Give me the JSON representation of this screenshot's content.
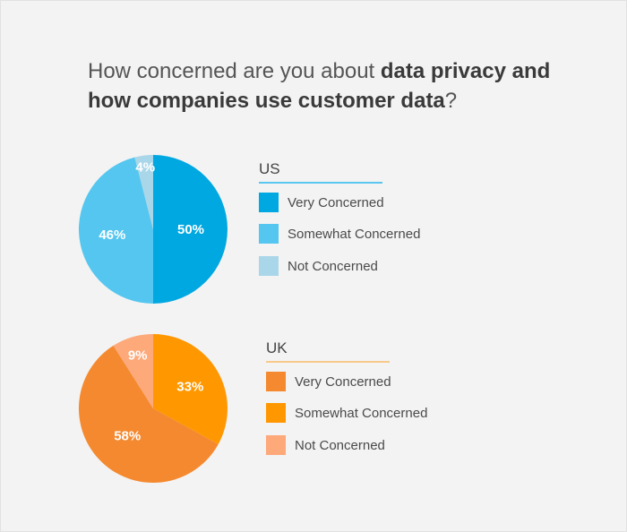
{
  "title": {
    "part1": "How concerned are you about ",
    "bold1": "data privacy and",
    "bold2": "how companies use customer data",
    "end": "?"
  },
  "chart_data": [
    {
      "type": "pie",
      "legend_title": "US",
      "labels": [
        "Very Concerned",
        "Somewhat Concerned",
        "Not Concerned"
      ],
      "values": [
        50,
        46,
        4
      ],
      "value_labels": [
        "50%",
        "46%",
        "4%"
      ],
      "colors": [
        "#00a8e1",
        "#55c6ef",
        "#a9d6e8"
      ],
      "legend_placement": "right"
    },
    {
      "type": "pie",
      "legend_title": "UK",
      "labels": [
        "Very Concerned",
        "Somewhat Concerned",
        "Not Concerned"
      ],
      "values": [
        33,
        58,
        9
      ],
      "value_labels": [
        "33%",
        "58%",
        "9%"
      ],
      "colors": [
        "#f5892f",
        "#ff9800",
        "#fda97a"
      ],
      "slice_colors": [
        "#ff9800",
        "#f5892f",
        "#fda97a"
      ],
      "legend_placement": "right"
    }
  ],
  "colors": {
    "us_rule": "#5bc6ef",
    "uk_rule": "#f8c98a"
  }
}
